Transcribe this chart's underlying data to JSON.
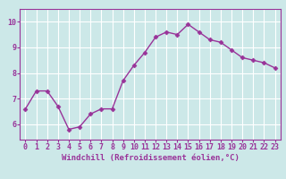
{
  "x": [
    0,
    1,
    2,
    3,
    4,
    5,
    6,
    7,
    8,
    9,
    10,
    11,
    12,
    13,
    14,
    15,
    16,
    17,
    18,
    19,
    20,
    21,
    22,
    23
  ],
  "y": [
    6.6,
    7.3,
    7.3,
    6.7,
    5.8,
    5.9,
    6.4,
    6.6,
    6.6,
    7.7,
    8.3,
    8.8,
    9.4,
    9.6,
    9.5,
    9.9,
    9.6,
    9.3,
    9.2,
    8.9,
    8.6,
    8.5,
    8.4,
    8.2
  ],
  "line_color": "#993399",
  "marker": "D",
  "marker_size": 2.5,
  "linewidth": 1.0,
  "bg_color": "#cce8e8",
  "grid_color": "#ffffff",
  "xlabel": "Windchill (Refroidissement éolien,°C)",
  "xlim": [
    -0.5,
    23.5
  ],
  "ylim": [
    5.4,
    10.5
  ],
  "yticks": [
    6,
    7,
    8,
    9,
    10
  ],
  "xtick_labels": [
    "0",
    "1",
    "2",
    "3",
    "4",
    "5",
    "6",
    "7",
    "8",
    "9",
    "10",
    "11",
    "12",
    "13",
    "14",
    "15",
    "16",
    "17",
    "18",
    "19",
    "20",
    "21",
    "22",
    "23"
  ],
  "xlabel_fontsize": 6.5,
  "tick_fontsize": 6.0,
  "border_color": "#993399",
  "title_color": "#993399"
}
